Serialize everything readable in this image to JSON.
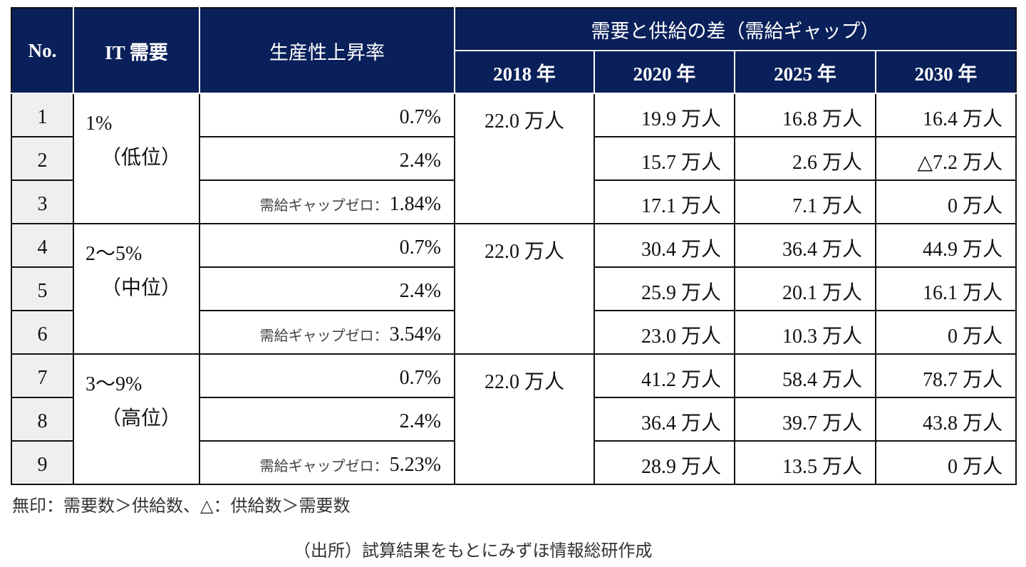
{
  "header": {
    "no": "No.",
    "it_demand": "IT 需要",
    "productivity": "生産性上昇率",
    "gap_group": "需要と供給の差（需給ギャップ）",
    "years": [
      "2018 年",
      "2020 年",
      "2025 年",
      "2030 年"
    ]
  },
  "groups": [
    {
      "demand": "1%",
      "level": "（低位）",
      "y2018": "22.0 万人"
    },
    {
      "demand": "2〜5%",
      "level": "（中位）",
      "y2018": "22.0 万人"
    },
    {
      "demand": "3〜9%",
      "level": "（高位）",
      "y2018": "22.0 万人"
    }
  ],
  "rows": [
    {
      "no": "1",
      "prefix": "",
      "rate": "0.7%",
      "y2020": "19.9 万人",
      "y2025": "16.8 万人",
      "y2030": "16.4 万人"
    },
    {
      "no": "2",
      "prefix": "",
      "rate": "2.4%",
      "y2020": "15.7 万人",
      "y2025": "2.6 万人",
      "y2030": "△7.2 万人"
    },
    {
      "no": "3",
      "prefix": "需給ギャップゼロ：",
      "rate": "1.84%",
      "y2020": "17.1 万人",
      "y2025": "7.1 万人",
      "y2030": "0 万人"
    },
    {
      "no": "4",
      "prefix": "",
      "rate": "0.7%",
      "y2020": "30.4 万人",
      "y2025": "36.4 万人",
      "y2030": "44.9 万人"
    },
    {
      "no": "5",
      "prefix": "",
      "rate": "2.4%",
      "y2020": "25.9 万人",
      "y2025": "20.1 万人",
      "y2030": "16.1 万人"
    },
    {
      "no": "6",
      "prefix": "需給ギャップゼロ：",
      "rate": "3.54%",
      "y2020": "23.0 万人",
      "y2025": "10.3 万人",
      "y2030": "0 万人"
    },
    {
      "no": "7",
      "prefix": "",
      "rate": "0.7%",
      "y2020": "41.2 万人",
      "y2025": "58.4 万人",
      "y2030": "78.7 万人"
    },
    {
      "no": "8",
      "prefix": "",
      "rate": "2.4%",
      "y2020": "36.4 万人",
      "y2025": "39.7 万人",
      "y2030": "43.8 万人"
    },
    {
      "no": "9",
      "prefix": "需給ギャップゼロ：",
      "rate": "5.23%",
      "y2020": "28.9 万人",
      "y2025": "13.5 万人",
      "y2030": "0 万人"
    }
  ],
  "footer": {
    "note": "無印：需要数＞供給数、△：供給数＞需要数",
    "source": "（出所）試算結果をもとにみずほ情報総研作成"
  },
  "colors": {
    "header_bg": "#0a205a",
    "no_col_bg": "#efefef"
  }
}
